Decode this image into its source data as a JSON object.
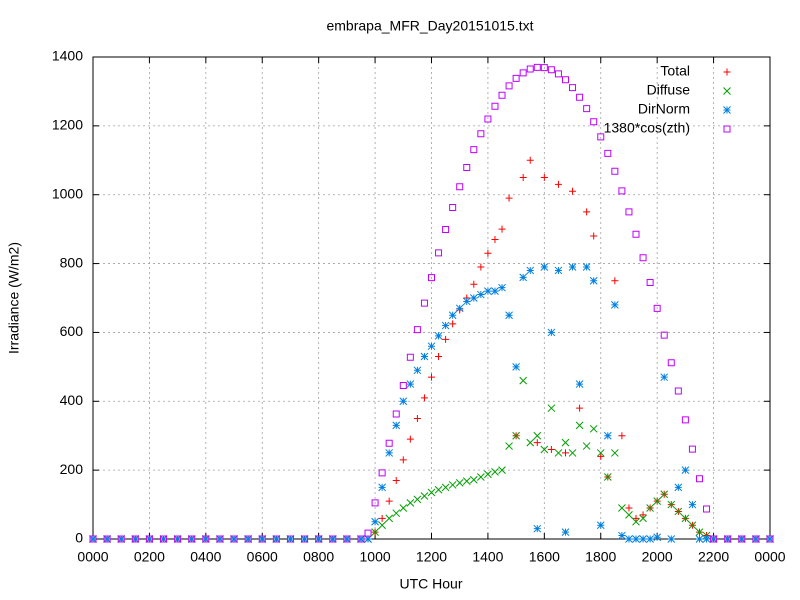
{
  "chart_data": {
    "type": "scatter",
    "title": "embrapa_MFR_Day20151015.txt",
    "x_label": "UTC Hour",
    "y_label": "Irradiance (W/m2)",
    "xlim": [
      0,
      24
    ],
    "ylim": [
      0,
      1400
    ],
    "xticks": [
      {
        "value": 0,
        "label": "0000"
      },
      {
        "value": 2,
        "label": "0200"
      },
      {
        "value": 4,
        "label": "0400"
      },
      {
        "value": 6,
        "label": "0600"
      },
      {
        "value": 8,
        "label": "0800"
      },
      {
        "value": 10,
        "label": "1000"
      },
      {
        "value": 12,
        "label": "1200"
      },
      {
        "value": 14,
        "label": "1400"
      },
      {
        "value": 16,
        "label": "1600"
      },
      {
        "value": 18,
        "label": "1800"
      },
      {
        "value": 20,
        "label": "2000"
      },
      {
        "value": 22,
        "label": "2200"
      },
      {
        "value": 24,
        "label": "0000"
      }
    ],
    "yticks": [
      0,
      200,
      400,
      600,
      800,
      1000,
      1200,
      1400
    ],
    "grid": true,
    "legend": "top-right",
    "x": [
      0,
      0.5,
      1,
      1.5,
      2,
      2.5,
      3,
      3.5,
      4,
      4.5,
      5,
      5.5,
      6,
      6.5,
      7,
      7.5,
      8,
      8.5,
      9,
      9.5,
      9.75,
      10,
      10.25,
      10.5,
      10.75,
      11,
      11.25,
      11.5,
      11.75,
      12,
      12.25,
      12.5,
      12.75,
      13,
      13.25,
      13.5,
      13.75,
      14,
      14.25,
      14.5,
      14.75,
      15,
      15.25,
      15.5,
      15.75,
      16,
      16.25,
      16.5,
      16.75,
      17,
      17.25,
      17.5,
      17.75,
      18,
      18.25,
      18.5,
      18.75,
      19,
      19.25,
      19.5,
      19.75,
      20,
      20.25,
      20.5,
      20.75,
      21,
      21.25,
      21.5,
      21.75,
      22,
      22.5,
      23,
      23.5,
      24
    ],
    "series": [
      {
        "name": "Total",
        "color": "#ff0000",
        "marker": "plus",
        "values": [
          0,
          0,
          0,
          0,
          0,
          0,
          0,
          0,
          0,
          0,
          0,
          0,
          0,
          0,
          0,
          0,
          0,
          0,
          0,
          0,
          0,
          20,
          60,
          110,
          170,
          230,
          290,
          350,
          410,
          470,
          530,
          580,
          625,
          665,
          700,
          740,
          790,
          830,
          870,
          900,
          990,
          300,
          1050,
          1100,
          280,
          1050,
          260,
          1030,
          250,
          1010,
          380,
          950,
          880,
          240,
          180,
          750,
          300,
          90,
          60,
          70,
          90,
          110,
          130,
          100,
          80,
          60,
          40,
          20,
          10,
          0,
          0,
          0,
          0,
          0
        ]
      },
      {
        "name": "Diffuse",
        "color": "#00a000",
        "marker": "cross",
        "values": [
          0,
          0,
          0,
          0,
          0,
          0,
          0,
          0,
          0,
          0,
          0,
          0,
          0,
          0,
          0,
          0,
          0,
          0,
          0,
          0,
          0,
          20,
          40,
          60,
          75,
          90,
          105,
          115,
          125,
          135,
          143,
          150,
          157,
          163,
          168,
          172,
          180,
          188,
          195,
          200,
          270,
          300,
          460,
          280,
          300,
          260,
          380,
          250,
          280,
          250,
          330,
          270,
          320,
          250,
          180,
          250,
          90,
          70,
          50,
          60,
          90,
          110,
          130,
          100,
          80,
          60,
          40,
          20,
          10,
          0,
          0,
          0,
          0,
          0
        ]
      },
      {
        "name": "DirNorm",
        "color": "#0080e0",
        "marker": "star",
        "values": [
          0,
          0,
          0,
          0,
          0,
          0,
          0,
          0,
          0,
          0,
          0,
          0,
          0,
          0,
          0,
          0,
          0,
          0,
          0,
          0,
          0,
          50,
          150,
          250,
          330,
          400,
          450,
          490,
          530,
          560,
          590,
          620,
          650,
          670,
          690,
          700,
          710,
          720,
          720,
          730,
          650,
          500,
          760,
          780,
          30,
          790,
          600,
          780,
          20,
          790,
          450,
          790,
          750,
          40,
          300,
          680,
          10,
          0,
          0,
          0,
          0,
          5,
          470,
          0,
          150,
          200,
          100,
          0,
          0,
          0,
          0,
          0,
          0,
          0
        ]
      },
      {
        "name": "1380*cos(zth)",
        "color": "#c000ff",
        "marker": "square",
        "values": [
          0,
          0,
          0,
          0,
          0,
          0,
          0,
          0,
          0,
          0,
          0,
          0,
          0,
          0,
          0,
          0,
          0,
          0,
          0,
          0,
          17,
          105,
          192,
          278,
          363,
          446,
          528,
          608,
          685,
          759,
          831,
          899,
          963,
          1023,
          1079,
          1131,
          1177,
          1220,
          1257,
          1289,
          1316,
          1338,
          1354,
          1365,
          1370,
          1369,
          1363,
          1351,
          1334,
          1311,
          1283,
          1250,
          1212,
          1168,
          1120,
          1068,
          1011,
          950,
          885,
          817,
          745,
          670,
          592,
          512,
          430,
          346,
          261,
          175,
          87,
          0,
          0,
          0,
          0,
          0
        ]
      }
    ]
  }
}
